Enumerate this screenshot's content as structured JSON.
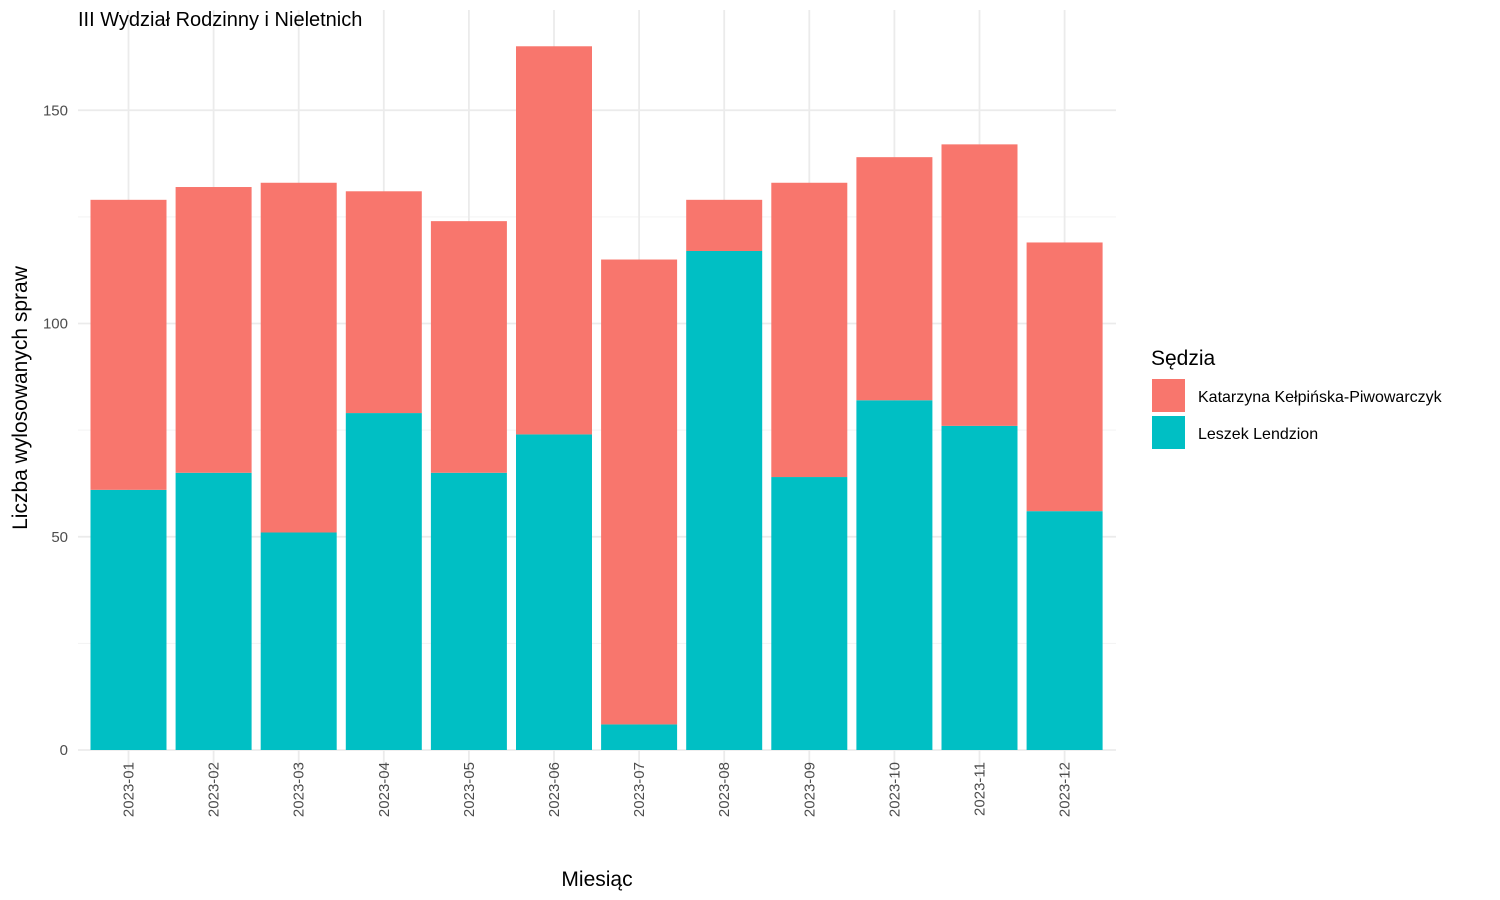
{
  "chart_data": {
    "type": "bar",
    "stacked": true,
    "title": "III Wydział Rodzinny i Nieletnich",
    "xlabel": "Miesiąc",
    "ylabel": "Liczba wylosowanych spraw",
    "ylim": [
      0,
      170
    ],
    "yticks": [
      0,
      50,
      100,
      150
    ],
    "grid": true,
    "legend_position": "right",
    "legend_title": "Sędzia",
    "categories": [
      "2023-01",
      "2023-02",
      "2023-03",
      "2023-04",
      "2023-05",
      "2023-06",
      "2023-07",
      "2023-08",
      "2023-09",
      "2023-10",
      "2023-11",
      "2023-12"
    ],
    "series": [
      {
        "name": "Leszek Lendzion",
        "color": "#00BFC4",
        "values": [
          61,
          65,
          51,
          79,
          65,
          74,
          6,
          117,
          64,
          82,
          76,
          56
        ]
      },
      {
        "name": "Katarzyna Kełpińska-Piwowarczyk",
        "color": "#F8766D",
        "values": [
          68,
          67,
          82,
          52,
          59,
          91,
          109,
          12,
          69,
          57,
          66,
          63
        ]
      }
    ],
    "legend_order": [
      "Katarzyna Kełpińska-Piwowarczyk",
      "Leszek Lendzion"
    ]
  }
}
